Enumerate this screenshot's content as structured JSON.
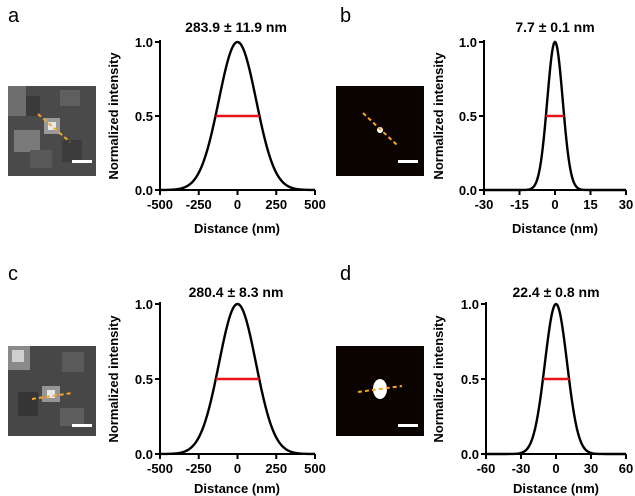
{
  "chart_data": [
    {
      "type": "line",
      "panel": "a",
      "title": "283.9 ± 11.9 nm",
      "xlabel": "Distance (nm)",
      "ylabel": "Normalized intensity",
      "xlim": [
        -500,
        500
      ],
      "ylim": [
        0,
        1.0
      ],
      "xticks": [
        "-500",
        "-250",
        "0",
        "250",
        "500"
      ],
      "yticks": [
        "0.0",
        "0.5",
        "1.0"
      ],
      "series": [
        {
          "shape": "gaussian",
          "center": 0,
          "fwhm": 283.9,
          "peak": 1.0
        }
      ],
      "fwhm_marker": {
        "from": -141.95,
        "to": 141.95,
        "y": 0.5
      },
      "grid": false,
      "colors": {
        "curve": "#000000",
        "fwhm": "#e8141c",
        "profile_line": "#f5a623"
      },
      "image": "microscopy-spot"
    },
    {
      "type": "line",
      "panel": "b",
      "title": "7.7 ± 0.1 nm",
      "xlabel": "Distance (nm)",
      "ylabel": "Normalized intensity",
      "xlim": [
        -30,
        30
      ],
      "ylim": [
        0,
        1.0
      ],
      "xticks": [
        "-30",
        "-15",
        "0",
        "15",
        "30"
      ],
      "yticks": [
        "0.0",
        "0.5",
        "1.0"
      ],
      "series": [
        {
          "shape": "gaussian",
          "center": 0,
          "fwhm": 7.7,
          "peak": 1.0
        }
      ],
      "fwhm_marker": {
        "from": -3.85,
        "to": 3.85,
        "y": 0.5
      },
      "grid": false,
      "colors": {
        "curve": "#000000",
        "fwhm": "#e8141c",
        "profile_line": "#f5a623"
      },
      "image": "super-resolved-point"
    },
    {
      "type": "line",
      "panel": "c",
      "title": "280.4 ± 8.3 nm",
      "xlabel": "Distance (nm)",
      "ylabel": "Normalized intensity",
      "xlim": [
        -500,
        500
      ],
      "ylim": [
        0,
        1.0
      ],
      "xticks": [
        "-500",
        "-250",
        "0",
        "250",
        "500"
      ],
      "yticks": [
        "0.0",
        "0.5",
        "1.0"
      ],
      "series": [
        {
          "shape": "gaussian",
          "center": 0,
          "fwhm": 280.4,
          "peak": 1.0
        }
      ],
      "fwhm_marker": {
        "from": -140.2,
        "to": 140.2,
        "y": 0.5
      },
      "grid": false,
      "colors": {
        "curve": "#000000",
        "fwhm": "#e8141c",
        "profile_line": "#f5a623"
      },
      "image": "microscopy-spot"
    },
    {
      "type": "line",
      "panel": "d",
      "title": "22.4 ± 0.8 nm",
      "xlabel": "Distance (nm)",
      "ylabel": "Normalized intensity",
      "xlim": [
        -60,
        60
      ],
      "ylim": [
        0,
        1.0
      ],
      "xticks": [
        "-60",
        "-30",
        "0",
        "30",
        "60"
      ],
      "yticks": [
        "0.0",
        "0.5",
        "1.0"
      ],
      "series": [
        {
          "shape": "gaussian",
          "center": 0,
          "fwhm": 22.4,
          "peak": 1.0
        }
      ],
      "fwhm_marker": {
        "from": -11.2,
        "to": 11.2,
        "y": 0.5
      },
      "grid": false,
      "colors": {
        "curve": "#000000",
        "fwhm": "#e8141c",
        "profile_line": "#f5a623"
      },
      "image": "super-resolved-blob"
    }
  ]
}
